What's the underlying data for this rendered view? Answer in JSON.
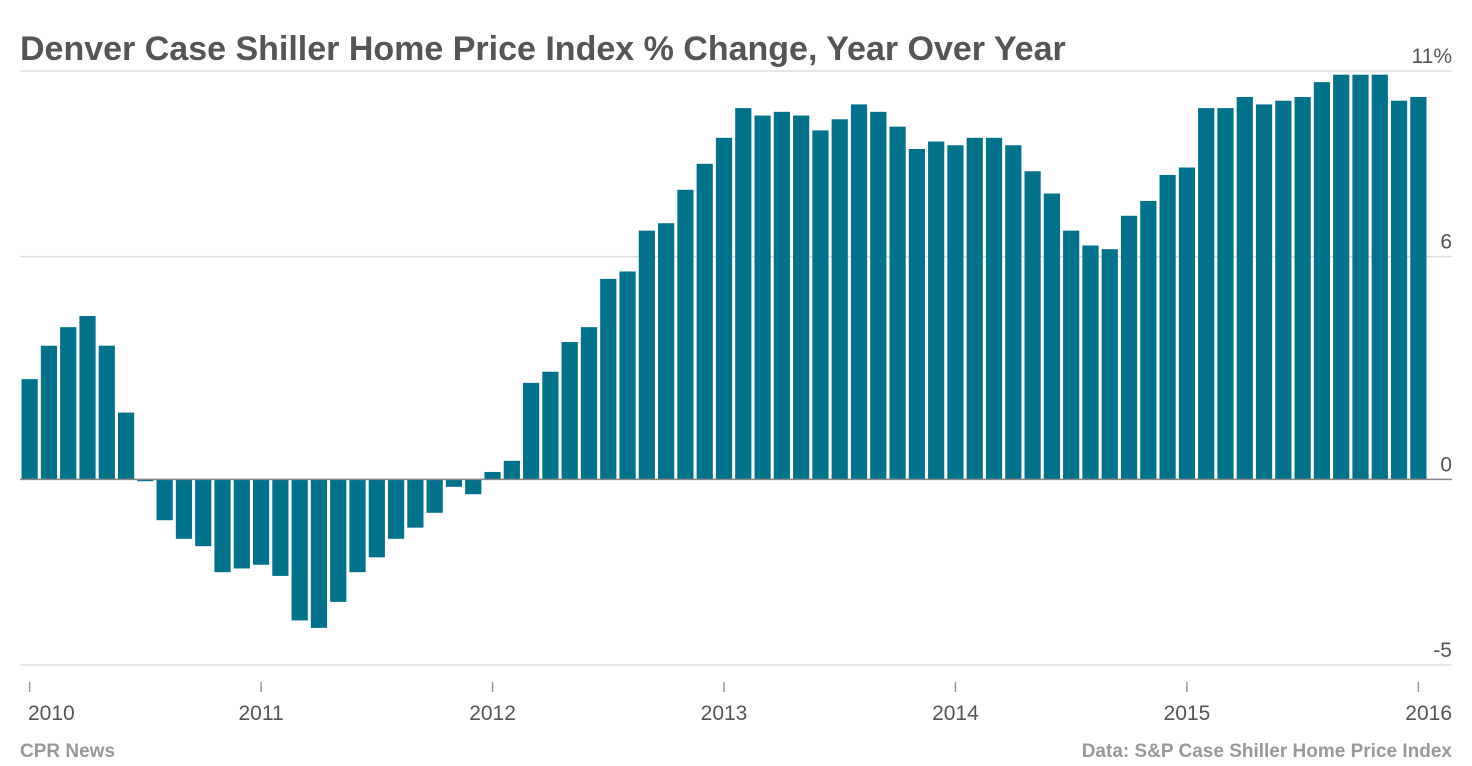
{
  "chart_data": {
    "type": "bar",
    "title": "Denver Case Shiller Home Price Index % Change, Year Over Year",
    "source": "Data: S&P Case Shiller Home Price Index",
    "credit": "CPR News",
    "color": "#00728c",
    "categories": [
      "2010",
      null,
      null,
      null,
      null,
      null,
      null,
      null,
      null,
      null,
      null,
      null,
      "2011",
      null,
      null,
      null,
      null,
      null,
      null,
      null,
      null,
      null,
      null,
      null,
      "2012",
      null,
      null,
      null,
      null,
      null,
      null,
      null,
      null,
      null,
      null,
      null,
      "2013",
      null,
      null,
      null,
      null,
      null,
      null,
      null,
      null,
      null,
      null,
      null,
      "2014",
      null,
      null,
      null,
      null,
      null,
      null,
      null,
      null,
      null,
      null,
      null,
      "2015",
      null,
      null,
      null,
      null,
      null,
      null,
      null,
      null,
      null,
      null,
      null,
      "2016"
    ],
    "values": [
      2.7,
      3.6,
      4.1,
      4.4,
      3.6,
      1.8,
      -0.05,
      -1.1,
      -1.6,
      -1.8,
      -2.5,
      -2.4,
      -2.3,
      -2.6,
      -3.8,
      -4.0,
      -3.3,
      -2.5,
      -2.1,
      -1.6,
      -1.3,
      -0.9,
      -0.2,
      -0.4,
      0.2,
      0.5,
      2.6,
      2.9,
      3.7,
      4.1,
      5.4,
      5.6,
      6.7,
      6.9,
      7.8,
      8.5,
      9.2,
      10.0,
      9.8,
      9.9,
      9.8,
      9.4,
      9.7,
      10.1,
      9.9,
      9.5,
      8.9,
      9.1,
      9.0,
      9.2,
      9.2,
      9.0,
      8.3,
      7.7,
      6.7,
      6.3,
      6.2,
      7.1,
      7.5,
      8.2,
      8.4,
      10.0,
      10.0,
      10.3,
      10.1,
      10.2,
      10.3,
      10.7,
      10.9,
      10.9,
      10.9,
      10.2,
      10.3
    ],
    "ylim": [
      -5,
      11
    ],
    "yticks": [
      -5,
      0,
      6,
      {
        "value": 11,
        "label": "11%"
      }
    ],
    "grid": true
  }
}
